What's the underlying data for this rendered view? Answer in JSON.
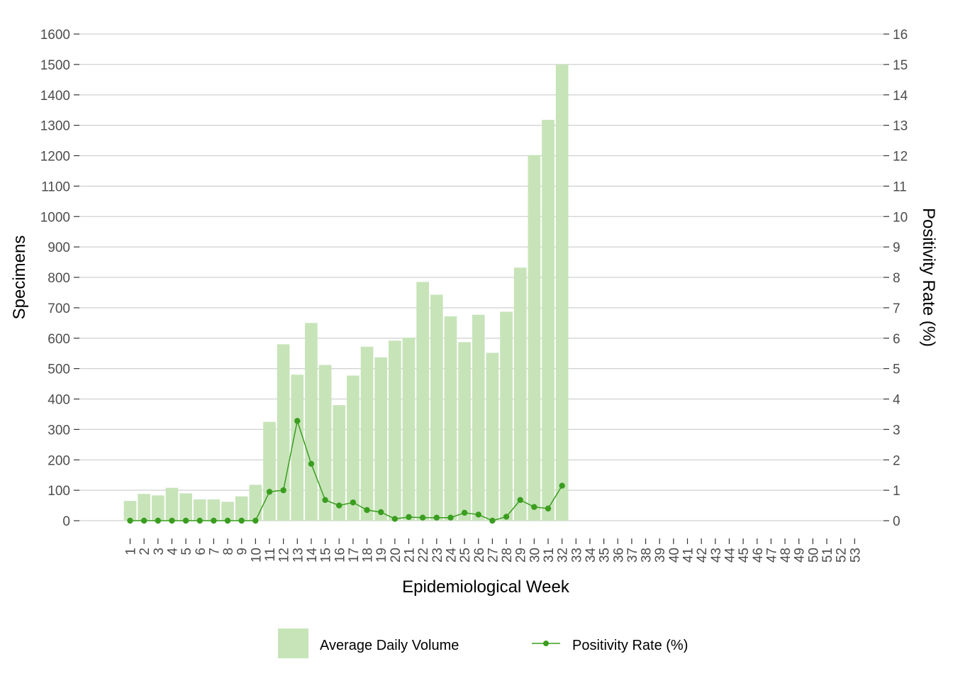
{
  "chart_data": {
    "type": "bar",
    "categories": [
      "1",
      "2",
      "3",
      "4",
      "5",
      "6",
      "7",
      "8",
      "9",
      "10",
      "11",
      "12",
      "13",
      "14",
      "15",
      "16",
      "17",
      "18",
      "19",
      "20",
      "21",
      "22",
      "23",
      "24",
      "25",
      "26",
      "27",
      "28",
      "29",
      "30",
      "31",
      "32",
      "33",
      "34",
      "35",
      "36",
      "37",
      "38",
      "39",
      "40",
      "41",
      "42",
      "43",
      "44",
      "45",
      "46",
      "47",
      "48",
      "49",
      "50",
      "51",
      "52",
      "53"
    ],
    "series": [
      {
        "name": "Average Daily Volume",
        "type": "bar",
        "axis": "left",
        "color": "#c7e4b9",
        "values": [
          65,
          88,
          83,
          108,
          90,
          70,
          70,
          62,
          80,
          118,
          325,
          580,
          480,
          650,
          512,
          380,
          477,
          572,
          537,
          592,
          602,
          785,
          743,
          672,
          587,
          677,
          552,
          687,
          832,
          1202,
          1318,
          1500,
          null,
          null,
          null,
          null,
          null,
          null,
          null,
          null,
          null,
          null,
          null,
          null,
          null,
          null,
          null,
          null,
          null,
          null,
          null,
          null,
          null
        ]
      },
      {
        "name": "Positivity Rate (%)",
        "type": "line",
        "axis": "right",
        "color": "#3a9d1f",
        "values": [
          0,
          0,
          0,
          0,
          0,
          0,
          0,
          0,
          0,
          0,
          0.95,
          1.0,
          3.28,
          1.87,
          0.68,
          0.5,
          0.6,
          0.35,
          0.28,
          0.06,
          0.12,
          0.1,
          0.1,
          0.1,
          0.26,
          0.2,
          0.0,
          0.13,
          0.68,
          0.45,
          0.4,
          1.15,
          null,
          null,
          null,
          null,
          null,
          null,
          null,
          null,
          null,
          null,
          null,
          null,
          null,
          null,
          null,
          null,
          null,
          null,
          null,
          null,
          null
        ]
      }
    ],
    "xlabel": "Epidemiological Week",
    "ylabel": "Specimens",
    "y2label": "Positivity Rate (%)",
    "ylim": [
      0,
      1600
    ],
    "y2lim": [
      0,
      16
    ],
    "yticks": [
      "0",
      "100",
      "200",
      "300",
      "400",
      "500",
      "600",
      "700",
      "800",
      "900",
      "1000",
      "1100",
      "1200",
      "1300",
      "1400",
      "1500",
      "1600"
    ],
    "y2ticks": [
      "0",
      "1",
      "2",
      "3",
      "4",
      "5",
      "6",
      "7",
      "8",
      "9",
      "10",
      "11",
      "12",
      "13",
      "14",
      "15",
      "16"
    ],
    "grid": true,
    "legend_position": "bottom"
  }
}
